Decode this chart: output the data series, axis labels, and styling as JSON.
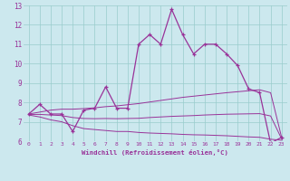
{
  "xlabel": "Windchill (Refroidissement éolien,°C)",
  "ylabel": "",
  "background_color": "#cce8ee",
  "line_color": "#993399",
  "xlim": [
    -0.5,
    23.5
  ],
  "ylim": [
    6,
    13
  ],
  "xticks": [
    0,
    1,
    2,
    3,
    4,
    5,
    6,
    7,
    8,
    9,
    10,
    11,
    12,
    13,
    14,
    15,
    16,
    17,
    18,
    19,
    20,
    21,
    22,
    23
  ],
  "yticks": [
    6,
    7,
    8,
    9,
    10,
    11,
    12,
    13
  ],
  "grid_color": "#99cccc",
  "main_line_x": [
    0,
    1,
    2,
    3,
    4,
    5,
    6,
    7,
    8,
    9,
    10,
    11,
    12,
    13,
    14,
    15,
    16,
    17,
    18,
    19,
    20,
    21,
    22,
    23
  ],
  "main_line_y": [
    7.4,
    7.9,
    7.4,
    7.4,
    6.5,
    7.6,
    7.7,
    8.8,
    7.7,
    7.7,
    11.0,
    11.5,
    11.0,
    12.8,
    11.5,
    10.5,
    11.0,
    11.0,
    10.5,
    9.9,
    8.7,
    8.5,
    5.9,
    6.2
  ],
  "lower_line_x": [
    0,
    1,
    2,
    3,
    4,
    5,
    6,
    7,
    8,
    9,
    10,
    11,
    12,
    13,
    14,
    15,
    16,
    17,
    18,
    19,
    20,
    21,
    22,
    23
  ],
  "lower_line_y": [
    7.35,
    7.25,
    7.1,
    7.0,
    6.8,
    6.65,
    6.6,
    6.55,
    6.5,
    6.5,
    6.45,
    6.42,
    6.4,
    6.38,
    6.35,
    6.33,
    6.32,
    6.3,
    6.28,
    6.25,
    6.22,
    6.2,
    6.1,
    6.05
  ],
  "upper_line_x": [
    0,
    1,
    2,
    3,
    4,
    5,
    6,
    7,
    8,
    9,
    10,
    11,
    12,
    13,
    14,
    15,
    16,
    17,
    18,
    19,
    20,
    21,
    22,
    23
  ],
  "upper_line_y": [
    7.4,
    7.5,
    7.6,
    7.65,
    7.65,
    7.68,
    7.72,
    7.78,
    7.82,
    7.88,
    7.94,
    8.02,
    8.1,
    8.18,
    8.26,
    8.32,
    8.38,
    8.44,
    8.5,
    8.55,
    8.6,
    8.65,
    8.5,
    6.2
  ],
  "mid_line_x": [
    0,
    1,
    2,
    3,
    4,
    5,
    6,
    7,
    8,
    9,
    10,
    11,
    12,
    13,
    14,
    15,
    16,
    17,
    18,
    19,
    20,
    21,
    22,
    23
  ],
  "mid_line_y": [
    7.38,
    7.38,
    7.35,
    7.32,
    7.22,
    7.17,
    7.16,
    7.17,
    7.16,
    7.17,
    7.18,
    7.22,
    7.25,
    7.28,
    7.3,
    7.32,
    7.35,
    7.37,
    7.39,
    7.4,
    7.41,
    7.42,
    7.3,
    6.12
  ]
}
